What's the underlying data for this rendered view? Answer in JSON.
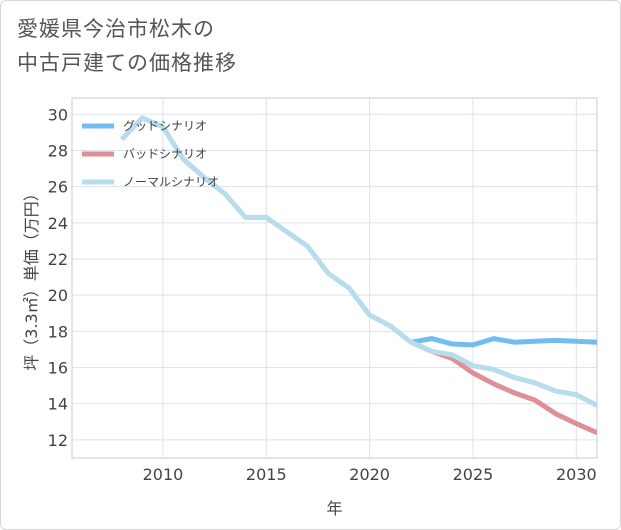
{
  "chart_data": {
    "type": "line",
    "title_lines": [
      "愛媛県今治市松木の",
      "中古戸建ての価格推移"
    ],
    "xlabel": "年",
    "ylabel": "坪（3.3㎡）単価（万円）",
    "xlim": [
      2005.6,
      2031
    ],
    "ylim": [
      11,
      30.9
    ],
    "x_ticks": [
      2010,
      2015,
      2020,
      2025,
      2030
    ],
    "y_ticks": [
      12,
      14,
      16,
      18,
      20,
      22,
      24,
      26,
      28,
      30
    ],
    "legend": [
      "グッドシナリオ",
      "バッドシナリオ",
      "ノーマルシナリオ"
    ],
    "series": [
      {
        "name": "グッドシナリオ",
        "color": "#73bcf0",
        "x": [
          2022,
          2023,
          2024,
          2025,
          2026,
          2027,
          2028,
          2029,
          2030,
          2031
        ],
        "y": [
          17.4,
          17.6,
          17.3,
          17.25,
          17.6,
          17.4,
          17.45,
          17.5,
          17.45,
          17.4
        ]
      },
      {
        "name": "バッドシナリオ",
        "color": "#df8f98",
        "x": [
          2022,
          2023,
          2024,
          2025,
          2026,
          2027,
          2028,
          2029,
          2030,
          2031
        ],
        "y": [
          17.4,
          16.9,
          16.5,
          15.7,
          15.1,
          14.6,
          14.2,
          13.45,
          12.9,
          12.4
        ]
      },
      {
        "name": "ノーマルシナリオ",
        "color": "#b8dcec",
        "x": [
          2008,
          2009,
          2010,
          2011,
          2012,
          2013,
          2014,
          2015,
          2016,
          2017,
          2018,
          2019,
          2020,
          2021,
          2022,
          2023,
          2024,
          2025,
          2026,
          2027,
          2028,
          2029,
          2030,
          2031
        ],
        "y": [
          28.6,
          29.8,
          29.3,
          27.5,
          26.5,
          25.6,
          24.3,
          24.3,
          23.5,
          22.7,
          21.2,
          20.4,
          18.9,
          18.3,
          17.4,
          16.9,
          16.7,
          16.1,
          15.9,
          15.45,
          15.15,
          14.7,
          14.5,
          13.9
        ]
      }
    ]
  }
}
